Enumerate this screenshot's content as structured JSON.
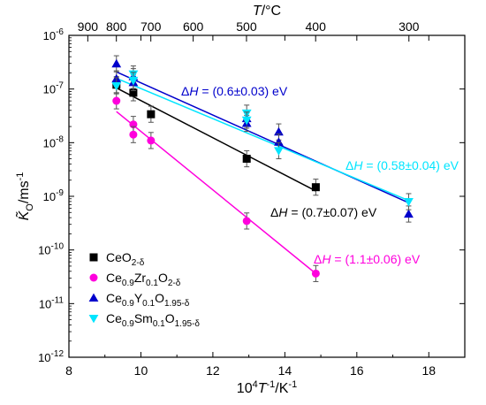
{
  "chart_data": {
    "type": "scatter",
    "title": "",
    "xlabel": "10^4T^-1/K^-1",
    "ylabel": "K_O/ms^-1",
    "top_axis_label": "T/°C",
    "xlim": [
      8,
      19
    ],
    "ylim_log10": [
      -12,
      -6
    ],
    "yscale": "log",
    "grid": false,
    "legend_position": "bottom-left",
    "x_ticks": [
      "8",
      "10",
      "12",
      "14",
      "16",
      "18"
    ],
    "y_ticks": [
      {
        "base": "10",
        "exp": "-12",
        "log": -12
      },
      {
        "base": "10",
        "exp": "-11",
        "log": -11
      },
      {
        "base": "10",
        "exp": "-10",
        "log": -10
      },
      {
        "base": "10",
        "exp": "-9",
        "log": -9
      },
      {
        "base": "10",
        "exp": "-8",
        "log": -8
      },
      {
        "base": "10",
        "exp": "-7",
        "log": -7
      },
      {
        "base": "10",
        "exp": "-6",
        "log": -6
      }
    ],
    "top_ticks": [
      "900",
      "800",
      "700",
      "600",
      "500",
      "400",
      "300"
    ],
    "top_tick_celsius": [
      900,
      800,
      700,
      600,
      500,
      400,
      300
    ],
    "series": [
      {
        "name": "CeO2-δ",
        "legend": {
          "main": "CeO",
          "sub1": "2-δ"
        },
        "color": "#000000",
        "marker": "square",
        "x": [
          9.32,
          9.79,
          10.28,
          12.94,
          14.86
        ],
        "y_log10": [
          -6.92,
          -7.07,
          -7.47,
          -8.3,
          -8.83
        ],
        "yerr_log": 0.15,
        "fit_x": [
          9.32,
          14.86
        ],
        "fit_y_log10": [
          -6.98,
          -8.9
        ],
        "annotation": {
          "prefix": "ΔH",
          "text": " = (0.7±0.07) eV"
        }
      },
      {
        "name": "Ce0.9Zr0.1O2-δ",
        "legend": {
          "p1": "Ce",
          "s1": "0.9",
          "p2": "Zr",
          "s2": "0.1",
          "p3": "O",
          "s3": "2-δ"
        },
        "color": "#ff00dd",
        "marker": "circle",
        "x": [
          9.32,
          9.79,
          9.79,
          10.28,
          12.94,
          14.86
        ],
        "y_log10": [
          -7.22,
          -7.66,
          -7.85,
          -7.96,
          -9.46,
          -10.44
        ],
        "yerr_log": 0.15,
        "fit_x": [
          9.32,
          14.86
        ],
        "fit_y_log10": [
          -7.42,
          -10.44
        ],
        "annotation": {
          "prefix": "ΔH",
          "text": " = (1.1±0.06) eV"
        }
      },
      {
        "name": "Ce0.9Y0.1O1.95-δ",
        "legend": {
          "p1": "Ce",
          "s1": "0.9",
          "p2": "Y",
          "s2": "0.1",
          "p3": "O",
          "s3": "1.95-δ"
        },
        "color": "#0000cc",
        "marker": "triangle-up",
        "x": [
          9.32,
          9.32,
          9.79,
          9.79,
          12.94,
          12.94,
          13.83,
          13.83,
          17.44
        ],
        "y_log10": [
          -6.53,
          -6.81,
          -6.77,
          -6.88,
          -7.55,
          -7.64,
          -7.8,
          -7.99,
          -9.33
        ],
        "yerr_log": 0.15,
        "fit_x": [
          9.32,
          17.44
        ],
        "fit_y_log10": [
          -6.68,
          -9.12
        ],
        "annotation": {
          "prefix": "ΔH",
          "text": " = (0.6±0.03) eV"
        }
      },
      {
        "name": "Ce0.9Sm0.1O1.95-δ",
        "legend": {
          "p1": "Ce",
          "s1": "0.9",
          "p2": "Sm",
          "s2": "0.1",
          "p3": "O",
          "s3": "1.95-δ"
        },
        "color": "#00e5ff",
        "marker": "triangle-down",
        "x": [
          9.32,
          9.79,
          9.79,
          12.94,
          12.94,
          13.83,
          17.44
        ],
        "y_log10": [
          -6.94,
          -6.72,
          -6.84,
          -7.45,
          -7.58,
          -8.15,
          -9.1
        ],
        "yerr_log": 0.15,
        "fit_x": [
          9.32,
          17.44
        ],
        "fit_y_log10": [
          -6.8,
          -9.08
        ],
        "annotation": {
          "prefix": "ΔH",
          "text": " = (0.58±0.04) eV"
        }
      }
    ]
  }
}
